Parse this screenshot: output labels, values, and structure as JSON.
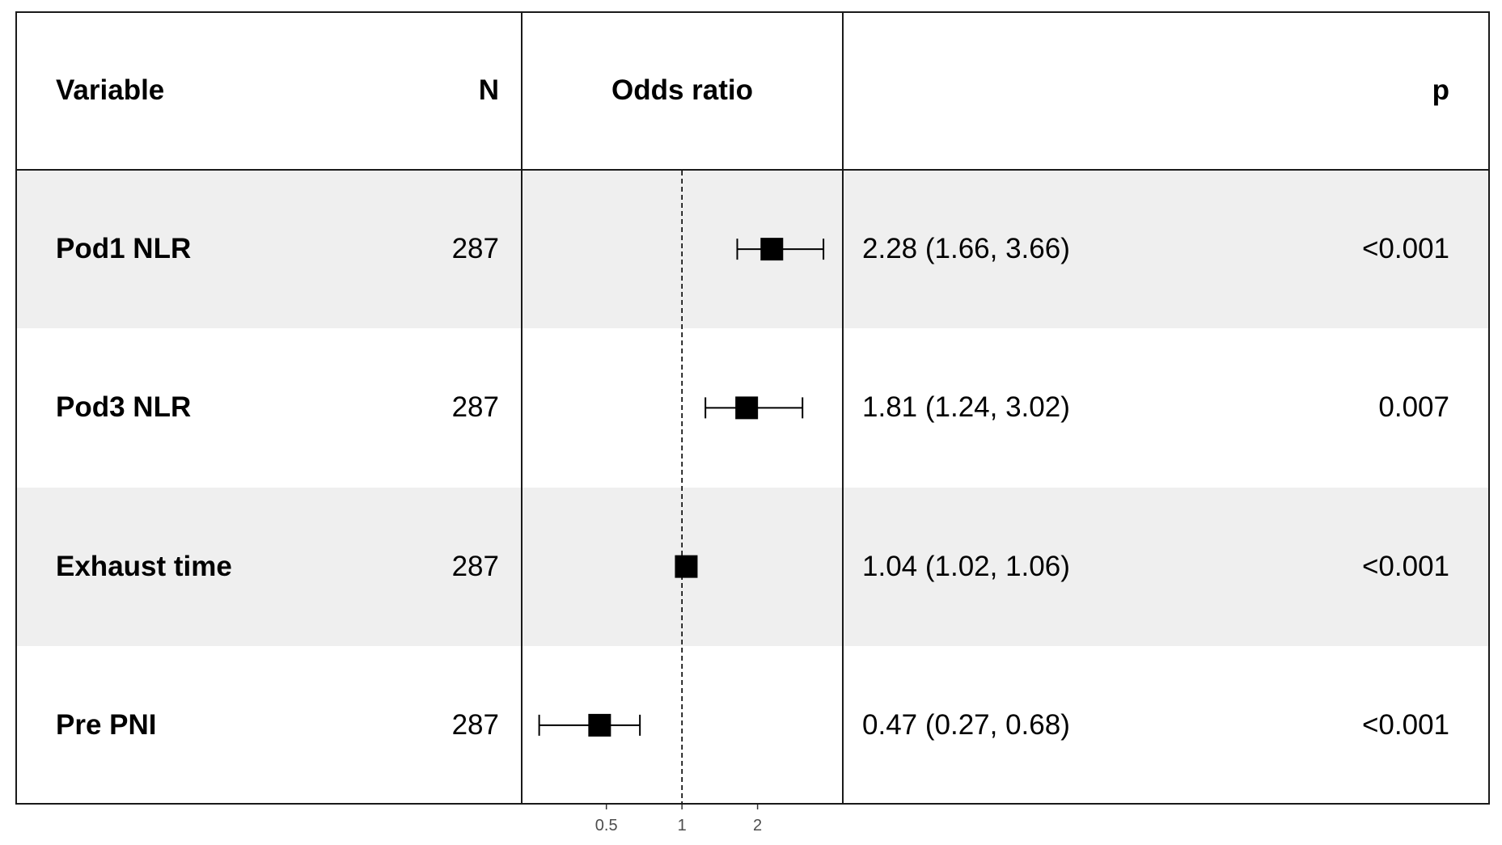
{
  "chart_data": {
    "type": "scatter",
    "columns": {
      "variable": "Variable",
      "n": "N",
      "estimate": "Odds ratio",
      "p": "p"
    },
    "rows": [
      {
        "variable": "Pod1 NLR",
        "n": 287,
        "odds_ratio": 2.28,
        "ci_low": 1.66,
        "ci_high": 3.66,
        "estimate_label": "2.28 (1.66, 3.66)",
        "p": "<0.001"
      },
      {
        "variable": "Pod3 NLR",
        "n": 287,
        "odds_ratio": 1.81,
        "ci_low": 1.24,
        "ci_high": 3.02,
        "estimate_label": "1.81 (1.24, 3.02)",
        "p": "0.007"
      },
      {
        "variable": "Exhaust time",
        "n": 287,
        "odds_ratio": 1.04,
        "ci_low": 1.02,
        "ci_high": 1.06,
        "estimate_label": "1.04 (1.02, 1.06)",
        "p": "<0.001"
      },
      {
        "variable": "Pre PNI",
        "n": 287,
        "odds_ratio": 0.47,
        "ci_low": 0.27,
        "ci_high": 0.68,
        "estimate_label": "0.47 (0.27, 0.68)",
        "p": "<0.001"
      }
    ],
    "x_scale": "log",
    "xlim": [
      0.23,
      4.37
    ],
    "x_ticks": [
      0.5,
      1,
      2
    ],
    "reference_line": 1,
    "grid": false
  },
  "colors": {
    "background": "#ffffff",
    "stripe": "#efefef",
    "border": "#1a1a1a",
    "text": "#000000",
    "mark": "#000000",
    "tick_label": "#4d4d4d",
    "tick_mark": "#333333"
  }
}
